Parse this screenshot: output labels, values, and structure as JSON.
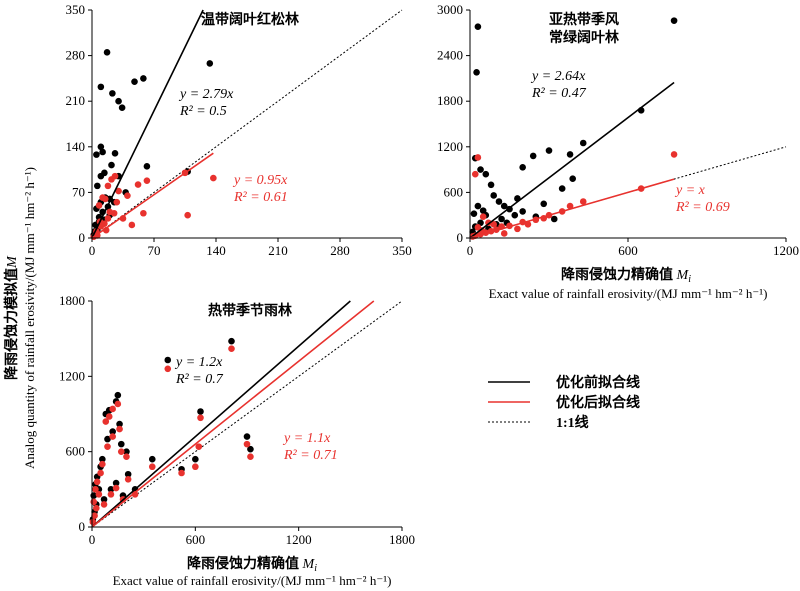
{
  "axis_labels": {
    "y_cn": "降雨侵蚀力模拟值",
    "y_en": "Analog quantity of rainfall erosivity/(MJ mm⁻¹ hm⁻² h⁻¹)",
    "y_sym": "M",
    "x_cn": "降雨侵蚀力精确值",
    "x_en": "Exact value of rainfall erosivity/(MJ mm⁻¹ hm⁻² h⁻¹)",
    "x_sym": "M",
    "x_sub": "i"
  },
  "legend": {
    "position": "lower-right",
    "items": [
      {
        "label": "优化前拟合线",
        "color": "#000000",
        "style": "solid"
      },
      {
        "label": "优化后拟合线",
        "color": "#e8322e",
        "style": "solid"
      },
      {
        "label": "1:1线",
        "color": "#000000",
        "style": "dotted"
      }
    ]
  },
  "chart_data": [
    {
      "type": "scatter",
      "title": "温带阔叶红松林",
      "xlim": [
        0,
        350
      ],
      "ylim": [
        0,
        350
      ],
      "xticks": [
        0,
        70,
        140,
        210,
        280,
        350
      ],
      "yticks": [
        0,
        70,
        140,
        210,
        280,
        350
      ],
      "fits": [
        {
          "series": "before",
          "slope": 2.79,
          "eq": "y = 2.79x",
          "r2": "R² = 0.5"
        },
        {
          "series": "after",
          "slope": 0.95,
          "eq": "y = 0.95x",
          "r2": "R² = 0.61"
        }
      ],
      "series": [
        {
          "name": "before",
          "color": "#000000",
          "points": [
            [
              4,
              20
            ],
            [
              8,
              32
            ],
            [
              12,
              40
            ],
            [
              10,
              55
            ],
            [
              15,
              62
            ],
            [
              18,
              48
            ],
            [
              20,
              60
            ],
            [
              25,
              55
            ],
            [
              6,
              80
            ],
            [
              10,
              95
            ],
            [
              14,
              100
            ],
            [
              22,
              112
            ],
            [
              5,
              128
            ],
            [
              12,
              132
            ],
            [
              26,
              130
            ],
            [
              17,
              285
            ],
            [
              10,
              232
            ],
            [
              23,
              222
            ],
            [
              30,
              210
            ],
            [
              34,
              200
            ],
            [
              58,
              245
            ],
            [
              48,
              240
            ],
            [
              62,
              110
            ],
            [
              108,
              102
            ],
            [
              133,
              268
            ],
            [
              10,
              140
            ],
            [
              30,
              95
            ],
            [
              38,
              70
            ],
            [
              5,
              45
            ],
            [
              8,
              25
            ],
            [
              3,
              10
            ],
            [
              2,
              5
            ],
            [
              6,
              12
            ],
            [
              14,
              28
            ],
            [
              20,
              35
            ]
          ]
        },
        {
          "name": "after",
          "color": "#e8322e",
          "points": [
            [
              5,
              10
            ],
            [
              10,
              18
            ],
            [
              14,
              22
            ],
            [
              18,
              30
            ],
            [
              20,
              40
            ],
            [
              25,
              38
            ],
            [
              8,
              50
            ],
            [
              12,
              62
            ],
            [
              18,
              80
            ],
            [
              22,
              90
            ],
            [
              26,
              95
            ],
            [
              30,
              72
            ],
            [
              40,
              65
            ],
            [
              52,
              82
            ],
            [
              62,
              88
            ],
            [
              58,
              38
            ],
            [
              45,
              20
            ],
            [
              108,
              35
            ],
            [
              137,
              92
            ],
            [
              105,
              100
            ],
            [
              15,
              60
            ],
            [
              28,
              55
            ],
            [
              35,
              30
            ],
            [
              6,
              4
            ],
            [
              2,
              2
            ],
            [
              9,
              25
            ],
            [
              16,
              12
            ]
          ]
        }
      ]
    },
    {
      "type": "scatter",
      "title": "亚热带季风常绿阔叶林",
      "title_lines": [
        "亚热带季风",
        "常绿阔叶林"
      ],
      "xlim": [
        0,
        1200
      ],
      "ylim": [
        0,
        3000
      ],
      "xticks": [
        0,
        600,
        1200
      ],
      "yticks": [
        0,
        600,
        1200,
        1800,
        2400,
        3000
      ],
      "fits": [
        {
          "series": "before",
          "slope": 2.64,
          "eq": "y = 2.64x",
          "r2": "R² = 0.47"
        },
        {
          "series": "after",
          "slope": 1.0,
          "eq": "y = x",
          "r2": "R² = 0.69"
        }
      ],
      "series": [
        {
          "name": "before",
          "color": "#000000",
          "points": [
            [
              30,
              2780
            ],
            [
              25,
              2180
            ],
            [
              775,
              2860
            ],
            [
              650,
              1680
            ],
            [
              430,
              1250
            ],
            [
              300,
              1150
            ],
            [
              380,
              1100
            ],
            [
              240,
              1080
            ],
            [
              200,
              930
            ],
            [
              390,
              780
            ],
            [
              350,
              650
            ],
            [
              20,
              1050
            ],
            [
              40,
              900
            ],
            [
              60,
              840
            ],
            [
              80,
              700
            ],
            [
              90,
              560
            ],
            [
              110,
              480
            ],
            [
              130,
              420
            ],
            [
              150,
              380
            ],
            [
              170,
              300
            ],
            [
              200,
              350
            ],
            [
              250,
              280
            ],
            [
              280,
              450
            ],
            [
              320,
              250
            ],
            [
              120,
              250
            ],
            [
              60,
              300
            ],
            [
              40,
              200
            ],
            [
              20,
              150
            ],
            [
              10,
              80
            ],
            [
              70,
              120
            ],
            [
              100,
              180
            ],
            [
              140,
              200
            ],
            [
              50,
              360
            ],
            [
              30,
              420
            ],
            [
              15,
              320
            ],
            [
              180,
              520
            ]
          ]
        },
        {
          "name": "after",
          "color": "#e8322e",
          "points": [
            [
              30,
              1060
            ],
            [
              20,
              840
            ],
            [
              775,
              1100
            ],
            [
              650,
              650
            ],
            [
              430,
              480
            ],
            [
              380,
              420
            ],
            [
              300,
              300
            ],
            [
              250,
              240
            ],
            [
              200,
              210
            ],
            [
              150,
              160
            ],
            [
              120,
              150
            ],
            [
              100,
              110
            ],
            [
              80,
              90
            ],
            [
              60,
              70
            ],
            [
              40,
              50
            ],
            [
              20,
              30
            ],
            [
              10,
              20
            ],
            [
              50,
              280
            ],
            [
              70,
              200
            ],
            [
              90,
              180
            ],
            [
              180,
              120
            ],
            [
              220,
              180
            ],
            [
              350,
              350
            ],
            [
              280,
              260
            ],
            [
              130,
              60
            ],
            [
              30,
              140
            ],
            [
              45,
              100
            ]
          ]
        }
      ]
    },
    {
      "type": "scatter",
      "title": "热带季节雨林",
      "xlim": [
        0,
        1800
      ],
      "ylim": [
        0,
        1800
      ],
      "xticks": [
        0,
        600,
        1200,
        1800
      ],
      "yticks": [
        0,
        600,
        1200,
        1800
      ],
      "fits": [
        {
          "series": "before",
          "slope": 1.2,
          "eq": "y = 1.2x",
          "r2": "R² = 0.7"
        },
        {
          "series": "after",
          "slope": 1.1,
          "eq": "y = 1.1x",
          "r2": "R² = 0.71"
        }
      ],
      "series": [
        {
          "name": "before",
          "color": "#000000",
          "points": [
            [
              810,
              1480
            ],
            [
              440,
              1330
            ],
            [
              630,
              920
            ],
            [
              900,
              720
            ],
            [
              920,
              620
            ],
            [
              150,
              1050
            ],
            [
              140,
              1000
            ],
            [
              100,
              930
            ],
            [
              80,
              900
            ],
            [
              160,
              820
            ],
            [
              120,
              760
            ],
            [
              90,
              700
            ],
            [
              170,
              660
            ],
            [
              200,
              600
            ],
            [
              60,
              540
            ],
            [
              50,
              480
            ],
            [
              30,
              400
            ],
            [
              20,
              340
            ],
            [
              40,
              300
            ],
            [
              10,
              250
            ],
            [
              110,
              300
            ],
            [
              140,
              350
            ],
            [
              210,
              420
            ],
            [
              350,
              540
            ],
            [
              520,
              460
            ],
            [
              600,
              540
            ],
            [
              70,
              220
            ],
            [
              25,
              180
            ],
            [
              15,
              120
            ],
            [
              5,
              60
            ],
            [
              180,
              250
            ],
            [
              250,
              300
            ]
          ]
        },
        {
          "name": "after",
          "color": "#e8322e",
          "points": [
            [
              810,
              1420
            ],
            [
              440,
              1260
            ],
            [
              630,
              870
            ],
            [
              900,
              660
            ],
            [
              920,
              560
            ],
            [
              150,
              980
            ],
            [
              120,
              940
            ],
            [
              100,
              880
            ],
            [
              80,
              840
            ],
            [
              160,
              780
            ],
            [
              120,
              720
            ],
            [
              90,
              640
            ],
            [
              170,
              600
            ],
            [
              200,
              560
            ],
            [
              60,
              500
            ],
            [
              50,
              430
            ],
            [
              30,
              360
            ],
            [
              20,
              300
            ],
            [
              40,
              260
            ],
            [
              10,
              200
            ],
            [
              110,
              260
            ],
            [
              140,
              310
            ],
            [
              210,
              380
            ],
            [
              350,
              480
            ],
            [
              520,
              430
            ],
            [
              600,
              480
            ],
            [
              70,
              180
            ],
            [
              25,
              150
            ],
            [
              15,
              90
            ],
            [
              5,
              40
            ],
            [
              180,
              220
            ],
            [
              250,
              260
            ],
            [
              620,
              640
            ]
          ]
        }
      ]
    }
  ]
}
